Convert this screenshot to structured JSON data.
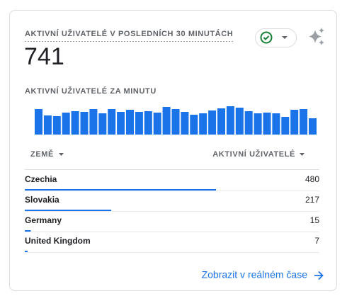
{
  "card": {
    "title": "AKTIVNÍ UŽIVATELÉ V POSLEDNÍCH 30 MINUTÁCH",
    "total": 741,
    "link": "Zobrazit v reálném čase"
  },
  "chart_data": {
    "type": "bar",
    "title": "AKTIVNÍ UŽIVATELÉ ZA MINUTU",
    "color": "#1a73e8",
    "ylim": [
      0,
      40
    ],
    "values": [
      36,
      27,
      26,
      31,
      33,
      32,
      36,
      30,
      36,
      32,
      35,
      32,
      33,
      31,
      39,
      36,
      32,
      28,
      30,
      34,
      37,
      40,
      38,
      33,
      30,
      31,
      30,
      25,
      35,
      36,
      23
    ]
  },
  "table": {
    "columns": [
      "ZEMĚ",
      "AKTIVNÍ UŽIVATELÉ"
    ],
    "rows": [
      {
        "country": "Czechia",
        "value": 480
      },
      {
        "country": "Slovakia",
        "value": 217
      },
      {
        "country": "Germany",
        "value": 15
      },
      {
        "country": "United Kingdom",
        "value": 7
      }
    ]
  }
}
